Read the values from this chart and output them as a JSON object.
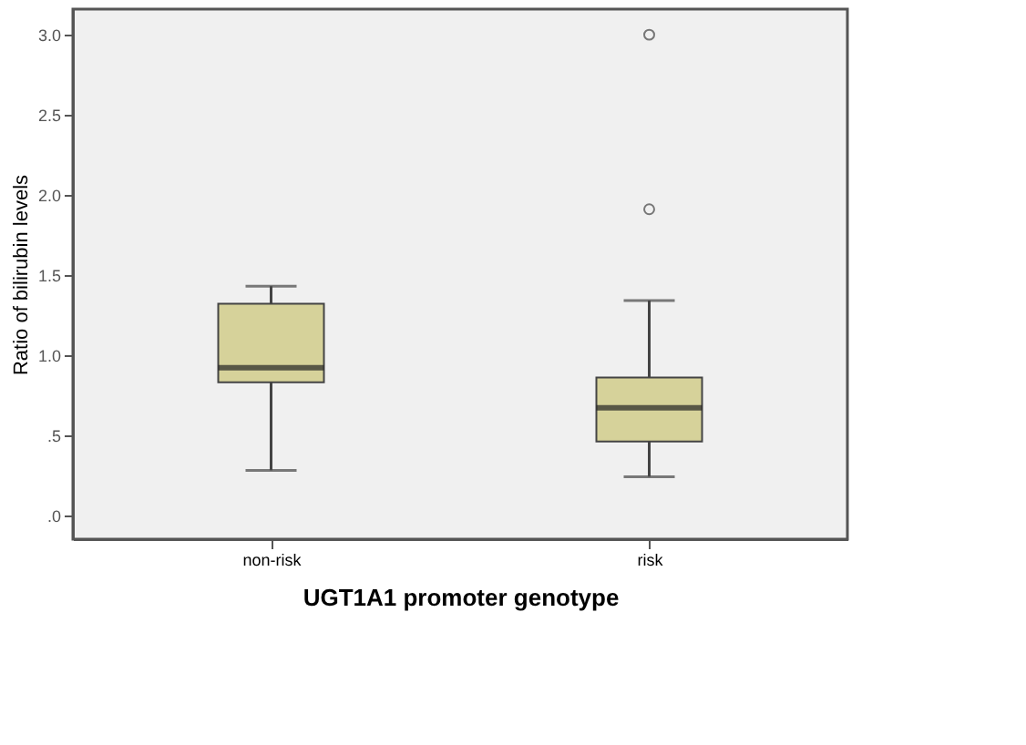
{
  "chart_data": {
    "type": "box",
    "xlabel": "UGT1A1 promoter genotype",
    "ylabel": "Ratio of bilirubin levels",
    "categories": [
      "non-risk",
      "risk"
    ],
    "boxes": [
      {
        "low": 0.28,
        "q1": 0.83,
        "median": 0.92,
        "q3": 1.32,
        "high": 1.43
      },
      {
        "low": 0.24,
        "q1": 0.46,
        "median": 0.67,
        "q3": 0.86,
        "high": 1.34,
        "outliers": [
          1.91,
          3.0
        ]
      }
    ],
    "color": "#d6d29a",
    "ylim": [
      -0.15,
      3.16
    ],
    "yticks": [
      {
        "value": 0,
        "label": ".0"
      },
      {
        "value": 0.5,
        "label": ".5"
      },
      {
        "value": 1.0,
        "label": "1.0"
      },
      {
        "value": 1.5,
        "label": "1.5"
      },
      {
        "value": 2.0,
        "label": "2.0"
      },
      {
        "value": 2.5,
        "label": "2.5"
      },
      {
        "value": 3.0,
        "label": "3.0"
      }
    ],
    "grid": false
  }
}
